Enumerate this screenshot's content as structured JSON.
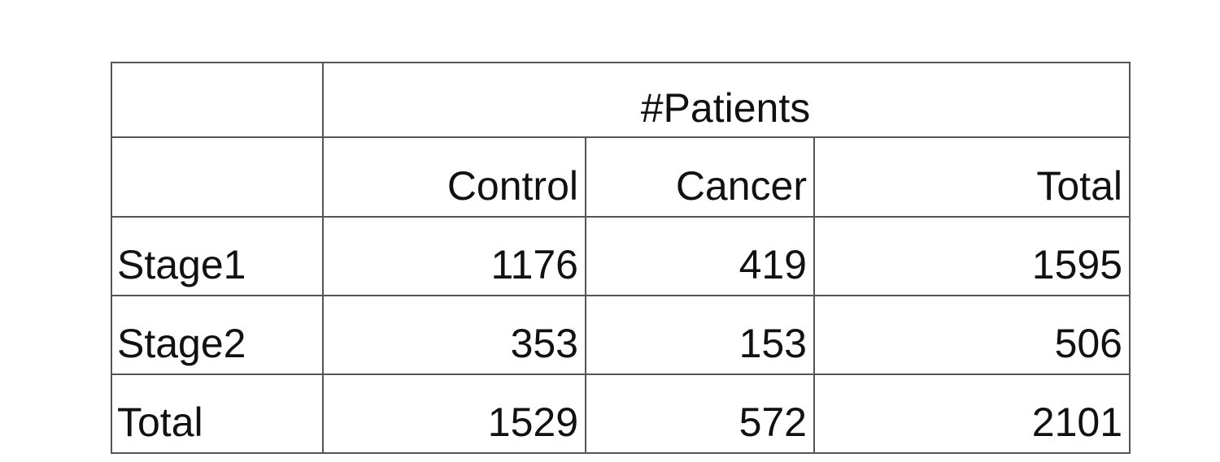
{
  "table": {
    "group_header": "#Patients",
    "columns": [
      "Control",
      "Cancer",
      "Total"
    ],
    "rows": [
      {
        "label": "Stage1",
        "values": [
          "1176",
          "419",
          "1595"
        ]
      },
      {
        "label": "Stage2",
        "values": [
          "353",
          "153",
          "506"
        ]
      },
      {
        "label": "Total",
        "values": [
          "1529",
          "572",
          "2101"
        ]
      }
    ]
  }
}
